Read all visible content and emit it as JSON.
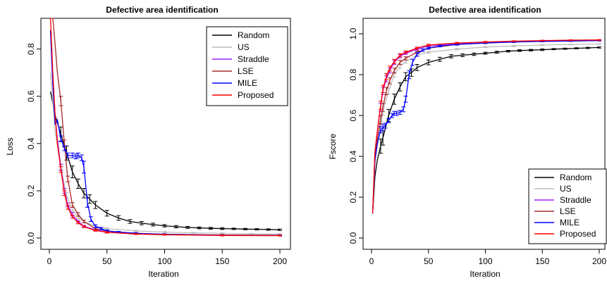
{
  "colors": {
    "Random": "#000000",
    "US": "#bebebe",
    "Straddle": "#a020f0",
    "LSE": "#a52a2a",
    "MILE": "#0000ff",
    "Proposed": "#ff0000"
  },
  "chart_data": [
    {
      "type": "line",
      "title": "Defective area identification",
      "xlabel": "Iteration",
      "ylabel": "Loss",
      "xlim": [
        0,
        200
      ],
      "ylim": [
        0,
        0.93
      ],
      "xticks": [
        0,
        50,
        100,
        150,
        200
      ],
      "yticks": [
        0.0,
        0.2,
        0.4,
        0.6,
        0.8
      ],
      "ytick_labels": [
        "0.0",
        "0.2",
        "0.4",
        "0.6",
        "0.8"
      ],
      "legend_position": "top-right",
      "error_bars": true,
      "series": [
        {
          "name": "Random",
          "x": [
            1,
            5,
            10,
            15,
            20,
            25,
            30,
            35,
            40,
            50,
            60,
            70,
            80,
            90,
            100,
            110,
            120,
            130,
            140,
            150,
            160,
            170,
            180,
            190,
            200
          ],
          "y": [
            0.62,
            0.52,
            0.44,
            0.36,
            0.28,
            0.23,
            0.19,
            0.165,
            0.14,
            0.105,
            0.085,
            0.07,
            0.063,
            0.057,
            0.052,
            0.048,
            0.045,
            0.043,
            0.041,
            0.04,
            0.039,
            0.038,
            0.037,
            0.036,
            0.035
          ],
          "err": [
            0.03,
            0.03,
            0.03,
            0.03,
            0.025,
            0.02,
            0.02,
            0.018,
            0.015,
            0.012,
            0.01,
            0.008,
            0.007,
            0.006,
            0.005,
            0.005,
            0.004,
            0.004,
            0.004,
            0.004,
            0.003,
            0.003,
            0.003,
            0.003,
            0.003
          ]
        },
        {
          "name": "US",
          "x": [
            1,
            5,
            10,
            15,
            20,
            25,
            30,
            40,
            50,
            75,
            100,
            125,
            150,
            175,
            200
          ],
          "y": [
            0.7,
            0.45,
            0.3,
            0.18,
            0.12,
            0.09,
            0.07,
            0.05,
            0.04,
            0.03,
            0.025,
            0.022,
            0.02,
            0.018,
            0.017
          ],
          "err": [
            0.02,
            0.02,
            0.015,
            0.012,
            0.01,
            0.008,
            0.006,
            0.005,
            0.004,
            0.003,
            0.003,
            0.002,
            0.002,
            0.002,
            0.002
          ]
        },
        {
          "name": "Straddle",
          "x": [
            1,
            3,
            5,
            7,
            10,
            13,
            16,
            20,
            25,
            30,
            40,
            50,
            75,
            100,
            150,
            200
          ],
          "y": [
            0.88,
            0.65,
            0.52,
            0.42,
            0.3,
            0.2,
            0.14,
            0.1,
            0.07,
            0.05,
            0.035,
            0.025,
            0.018,
            0.015,
            0.012,
            0.011
          ],
          "err": [
            0.02,
            0.02,
            0.015,
            0.015,
            0.012,
            0.01,
            0.008,
            0.007,
            0.005,
            0.004,
            0.003,
            0.003,
            0.002,
            0.002,
            0.002,
            0.002
          ]
        },
        {
          "name": "LSE",
          "x": [
            1,
            3,
            5,
            7,
            10,
            13,
            16,
            20,
            25,
            30,
            40,
            50,
            75,
            100,
            150,
            200
          ],
          "y": [
            0.93,
            0.93,
            0.82,
            0.7,
            0.58,
            0.4,
            0.25,
            0.14,
            0.1,
            0.07,
            0.04,
            0.03,
            0.02,
            0.016,
            0.013,
            0.012
          ],
          "err": [
            0.02,
            0.02,
            0.02,
            0.02,
            0.02,
            0.015,
            0.012,
            0.01,
            0.008,
            0.006,
            0.004,
            0.003,
            0.002,
            0.002,
            0.002,
            0.002
          ]
        },
        {
          "name": "MILE",
          "x": [
            1,
            3,
            5,
            7,
            10,
            13,
            16,
            20,
            23,
            25,
            28,
            30,
            33,
            36,
            40,
            45,
            50,
            60,
            75,
            100,
            150,
            200
          ],
          "y": [
            0.88,
            0.65,
            0.48,
            0.5,
            0.42,
            0.38,
            0.35,
            0.35,
            0.345,
            0.35,
            0.34,
            0.3,
            0.15,
            0.08,
            0.05,
            0.04,
            0.03,
            0.025,
            0.02,
            0.016,
            0.012,
            0.011
          ],
          "err": [
            0.02,
            0.02,
            0.015,
            0.015,
            0.012,
            0.01,
            0.01,
            0.01,
            0.01,
            0.01,
            0.012,
            0.025,
            0.02,
            0.01,
            0.006,
            0.005,
            0.004,
            0.003,
            0.003,
            0.002,
            0.002,
            0.002
          ]
        },
        {
          "name": "Proposed",
          "x": [
            1,
            3,
            5,
            7,
            10,
            13,
            16,
            20,
            25,
            30,
            40,
            50,
            75,
            100,
            150,
            200
          ],
          "y": [
            0.93,
            0.7,
            0.52,
            0.4,
            0.29,
            0.19,
            0.13,
            0.09,
            0.065,
            0.048,
            0.032,
            0.024,
            0.017,
            0.014,
            0.011,
            0.01
          ],
          "err": [
            0.02,
            0.02,
            0.015,
            0.015,
            0.012,
            0.01,
            0.008,
            0.006,
            0.005,
            0.004,
            0.003,
            0.003,
            0.002,
            0.002,
            0.002,
            0.002
          ]
        }
      ]
    },
    {
      "type": "line",
      "title": "Defective area identification",
      "xlabel": "Iteration",
      "ylabel": "Fscore",
      "xlim": [
        0,
        200
      ],
      "ylim": [
        0,
        1.0
      ],
      "xticks": [
        0,
        50,
        100,
        150,
        200
      ],
      "yticks": [
        0.0,
        0.2,
        0.4,
        0.6,
        0.8,
        1.0
      ],
      "ytick_labels": [
        "0.0",
        "0.2",
        "0.4",
        "0.6",
        "0.8",
        "1.0"
      ],
      "legend_position": "bottom-right",
      "error_bars": true,
      "series": [
        {
          "name": "Random",
          "x": [
            1,
            3,
            5,
            8,
            10,
            15,
            20,
            25,
            30,
            35,
            40,
            50,
            60,
            70,
            80,
            90,
            100,
            110,
            120,
            130,
            140,
            150,
            160,
            170,
            180,
            190,
            200
          ],
          "y": [
            0.12,
            0.3,
            0.38,
            0.45,
            0.49,
            0.6,
            0.68,
            0.74,
            0.79,
            0.81,
            0.835,
            0.86,
            0.875,
            0.89,
            0.895,
            0.9,
            0.905,
            0.91,
            0.915,
            0.918,
            0.92,
            0.922,
            0.925,
            0.927,
            0.929,
            0.931,
            0.933
          ],
          "err": [
            0.01,
            0.02,
            0.03,
            0.035,
            0.035,
            0.03,
            0.025,
            0.02,
            0.02,
            0.018,
            0.015,
            0.012,
            0.01,
            0.008,
            0.007,
            0.006,
            0.005,
            0.005,
            0.004,
            0.004,
            0.004,
            0.004,
            0.003,
            0.003,
            0.003,
            0.003,
            0.003
          ]
        },
        {
          "name": "US",
          "x": [
            1,
            3,
            5,
            8,
            10,
            15,
            20,
            25,
            30,
            40,
            50,
            75,
            100,
            125,
            150,
            175,
            200
          ],
          "y": [
            0.12,
            0.36,
            0.45,
            0.55,
            0.62,
            0.72,
            0.8,
            0.84,
            0.865,
            0.895,
            0.91,
            0.925,
            0.935,
            0.94,
            0.945,
            0.948,
            0.95
          ],
          "err": [
            0.01,
            0.02,
            0.02,
            0.02,
            0.018,
            0.015,
            0.012,
            0.01,
            0.008,
            0.006,
            0.005,
            0.004,
            0.003,
            0.003,
            0.003,
            0.002,
            0.002
          ]
        },
        {
          "name": "Straddle",
          "x": [
            1,
            3,
            5,
            8,
            10,
            13,
            16,
            20,
            25,
            30,
            40,
            50,
            75,
            100,
            125,
            150,
            175,
            200
          ],
          "y": [
            0.12,
            0.42,
            0.52,
            0.64,
            0.72,
            0.78,
            0.82,
            0.86,
            0.89,
            0.905,
            0.925,
            0.94,
            0.952,
            0.958,
            0.962,
            0.965,
            0.967,
            0.968
          ],
          "err": [
            0.01,
            0.02,
            0.02,
            0.02,
            0.018,
            0.015,
            0.012,
            0.01,
            0.008,
            0.006,
            0.005,
            0.004,
            0.003,
            0.003,
            0.002,
            0.002,
            0.002,
            0.002
          ]
        },
        {
          "name": "LSE",
          "x": [
            1,
            3,
            5,
            8,
            10,
            13,
            16,
            20,
            25,
            30,
            40,
            50,
            75,
            100,
            125,
            150,
            175,
            200
          ],
          "y": [
            0.12,
            0.4,
            0.48,
            0.58,
            0.64,
            0.72,
            0.77,
            0.82,
            0.86,
            0.88,
            0.91,
            0.93,
            0.948,
            0.955,
            0.96,
            0.963,
            0.965,
            0.967
          ],
          "err": [
            0.01,
            0.02,
            0.02,
            0.02,
            0.02,
            0.018,
            0.015,
            0.012,
            0.01,
            0.008,
            0.006,
            0.005,
            0.004,
            0.003,
            0.003,
            0.002,
            0.002,
            0.002
          ]
        },
        {
          "name": "MILE",
          "x": [
            1,
            3,
            5,
            8,
            10,
            12,
            15,
            18,
            20,
            22,
            25,
            28,
            30,
            33,
            36,
            40,
            45,
            50,
            60,
            75,
            100,
            125,
            150,
            175,
            200
          ],
          "y": [
            0.12,
            0.38,
            0.46,
            0.53,
            0.54,
            0.55,
            0.575,
            0.6,
            0.61,
            0.61,
            0.615,
            0.63,
            0.68,
            0.8,
            0.86,
            0.9,
            0.92,
            0.93,
            0.94,
            0.948,
            0.955,
            0.96,
            0.963,
            0.965,
            0.967
          ],
          "err": [
            0.01,
            0.02,
            0.015,
            0.015,
            0.015,
            0.012,
            0.01,
            0.01,
            0.01,
            0.01,
            0.01,
            0.012,
            0.015,
            0.02,
            0.015,
            0.01,
            0.006,
            0.005,
            0.004,
            0.003,
            0.003,
            0.002,
            0.002,
            0.002,
            0.002
          ]
        },
        {
          "name": "Proposed",
          "x": [
            1,
            3,
            5,
            8,
            10,
            13,
            16,
            20,
            25,
            30,
            40,
            50,
            75,
            100,
            125,
            150,
            175,
            200
          ],
          "y": [
            0.12,
            0.42,
            0.52,
            0.65,
            0.73,
            0.79,
            0.83,
            0.865,
            0.895,
            0.91,
            0.93,
            0.945,
            0.955,
            0.96,
            0.964,
            0.967,
            0.969,
            0.97
          ],
          "err": [
            0.01,
            0.02,
            0.02,
            0.02,
            0.018,
            0.015,
            0.012,
            0.01,
            0.008,
            0.006,
            0.005,
            0.004,
            0.003,
            0.003,
            0.002,
            0.002,
            0.002,
            0.002
          ]
        }
      ]
    }
  ]
}
